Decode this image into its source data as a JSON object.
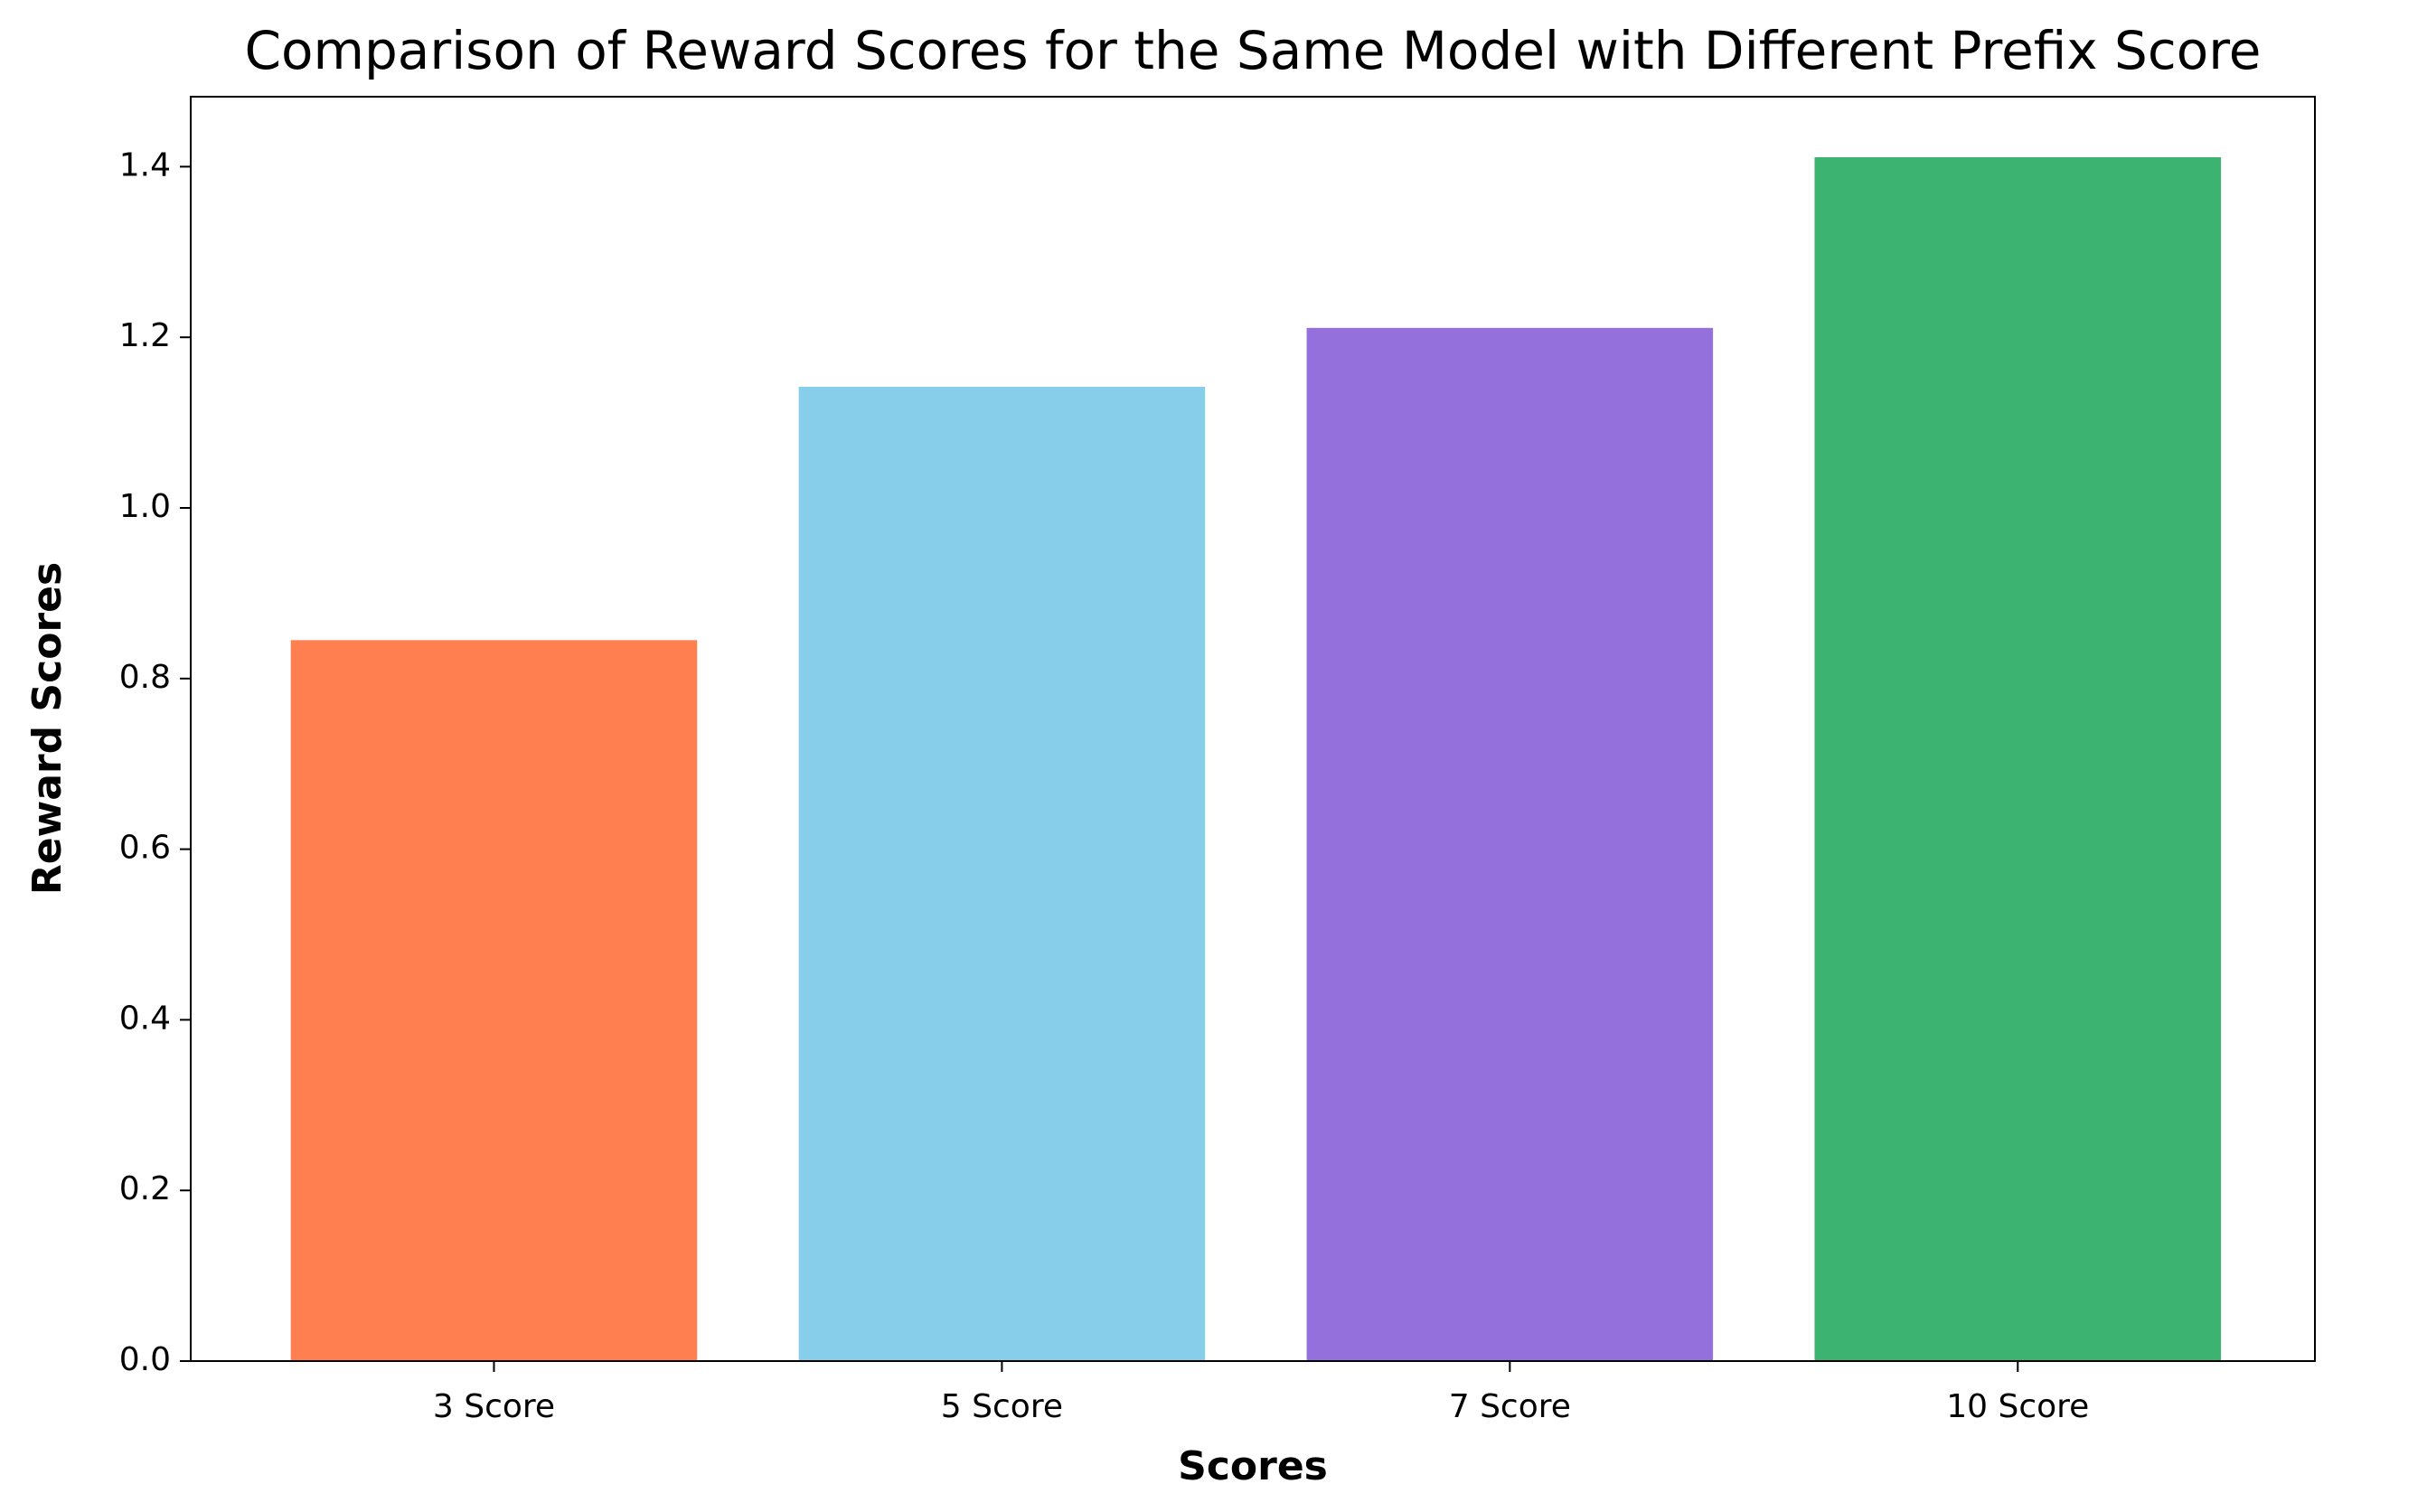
{
  "chart_data": {
    "type": "bar",
    "title": "Comparison of Reward Scores for the Same Model with Different Prefix Score",
    "x_label": "Scores",
    "y_label": "Reward Scores",
    "categories": [
      "3 Score",
      "5 Score",
      "7 Score",
      "10 Score"
    ],
    "values": [
      0.845,
      1.142,
      1.211,
      1.411
    ],
    "colors": [
      "#ff7f50",
      "#87ceeb",
      "#9370db",
      "#3cb371"
    ],
    "ylim": [
      0,
      1.482
    ],
    "yticks": [
      {
        "value": 0,
        "label": "0.0"
      },
      {
        "value": 0.2,
        "label": "0.2"
      },
      {
        "value": 0.4,
        "label": "0.4"
      },
      {
        "value": 0.6,
        "label": "0.6"
      },
      {
        "value": 0.8,
        "label": "0.8"
      },
      {
        "value": 1.0,
        "label": "1.0"
      },
      {
        "value": 1.2,
        "label": "1.2"
      },
      {
        "value": 1.4,
        "label": "1.4"
      }
    ],
    "grid": false
  }
}
